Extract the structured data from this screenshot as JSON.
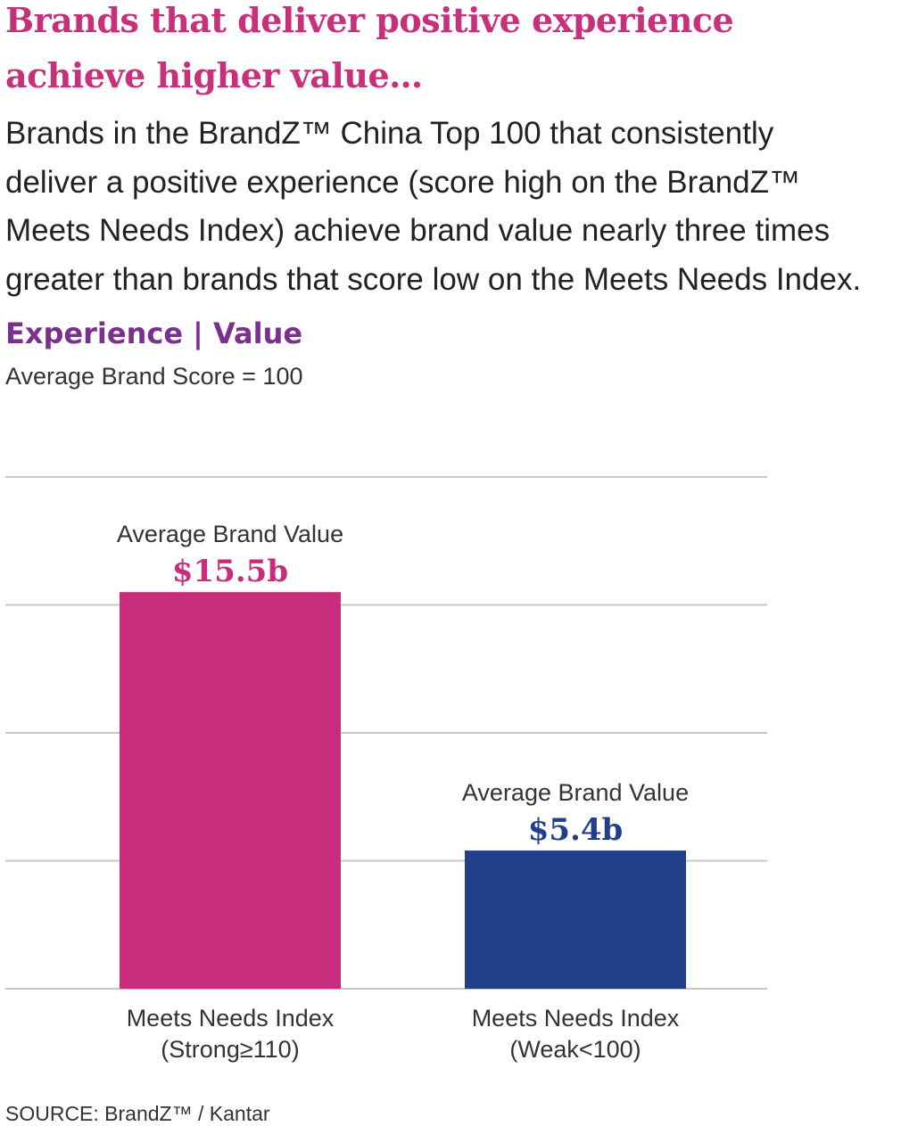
{
  "header": {
    "title_line1": "Brands that deliver positive experience",
    "title_line2": "achieve higher value…",
    "intro_lines": [
      "Brands in the BrandZ™ China Top 100 that consistently",
      "deliver a positive experience (score high on the BrandZ™",
      "Meets Needs Index) achieve brand value nearly three times",
      "greater than brands that score low on the Meets Needs Index."
    ]
  },
  "chart_heading": "Experience | Value",
  "chart_subheading": "Average Brand Score = 100",
  "source": "SOURCE: BrandZ™ / Kantar",
  "colors": {
    "title": "#c7307a",
    "heading": "#7b2f8e",
    "bar_strong": "#c72d7a",
    "bar_weak": "#233f8c",
    "gridline": "#c8c8c8"
  },
  "chart_data": {
    "type": "bar",
    "unit": "$ billion",
    "ylim": [
      0,
      20
    ],
    "grid": true,
    "gridline_values": [
      0,
      5,
      10,
      15,
      20
    ],
    "categories": [
      {
        "line1": "Meets Needs Index",
        "line2": "(Strong≥110)"
      },
      {
        "line1": "Meets Needs Index",
        "line2": "(Weak<100)"
      }
    ],
    "values": [
      15.5,
      5.4
    ],
    "value_captions": [
      "Average Brand Value",
      "Average Brand Value"
    ],
    "value_labels": [
      "$15.5b",
      "$5.4b"
    ]
  }
}
